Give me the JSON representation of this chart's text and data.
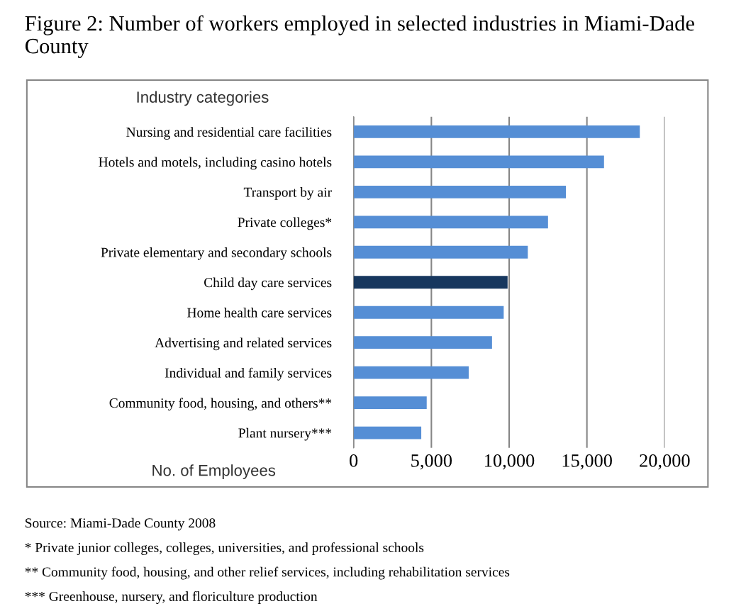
{
  "chart_data": {
    "type": "bar",
    "orientation": "horizontal",
    "title": "Figure 2: Number of workers employed in selected industries in Miami-Dade County",
    "ylabel": "Industry categories",
    "xlabel": "No. of Employees",
    "categories": [
      "Nursing and residential care facilities",
      "Hotels and motels, including casino hotels",
      "Transport by air",
      "Private colleges*",
      "Private elementary and secondary schools",
      "Child day care services",
      "Home health care services",
      "Advertising and related services",
      "Individual and family services",
      "Community food, housing, and others**",
      "Plant nursery***"
    ],
    "values": [
      18400,
      16100,
      13650,
      12500,
      11200,
      9900,
      9650,
      8900,
      7400,
      4700,
      4350
    ],
    "colors": [
      "#558ed5",
      "#558ed5",
      "#558ed5",
      "#558ed5",
      "#558ed5",
      "#17375e",
      "#558ed5",
      "#558ed5",
      "#558ed5",
      "#558ed5",
      "#558ed5"
    ],
    "xlim": [
      0,
      20000
    ],
    "xticks": [
      {
        "value": 0,
        "label": "0"
      },
      {
        "value": 5000,
        "label": "5,000"
      },
      {
        "value": 10000,
        "label": "10,000"
      },
      {
        "value": 15000,
        "label": "15,000"
      },
      {
        "value": 20000,
        "label": "20,000"
      }
    ],
    "grid": "x",
    "annotations": [
      "Source: Miami-Dade County 2008",
      "* Private junior colleges, colleges, universities, and professional schools",
      "** Community food, housing, and other relief services, including rehabilitation services",
      "*** Greenhouse, nursery, and floriculture production"
    ]
  }
}
